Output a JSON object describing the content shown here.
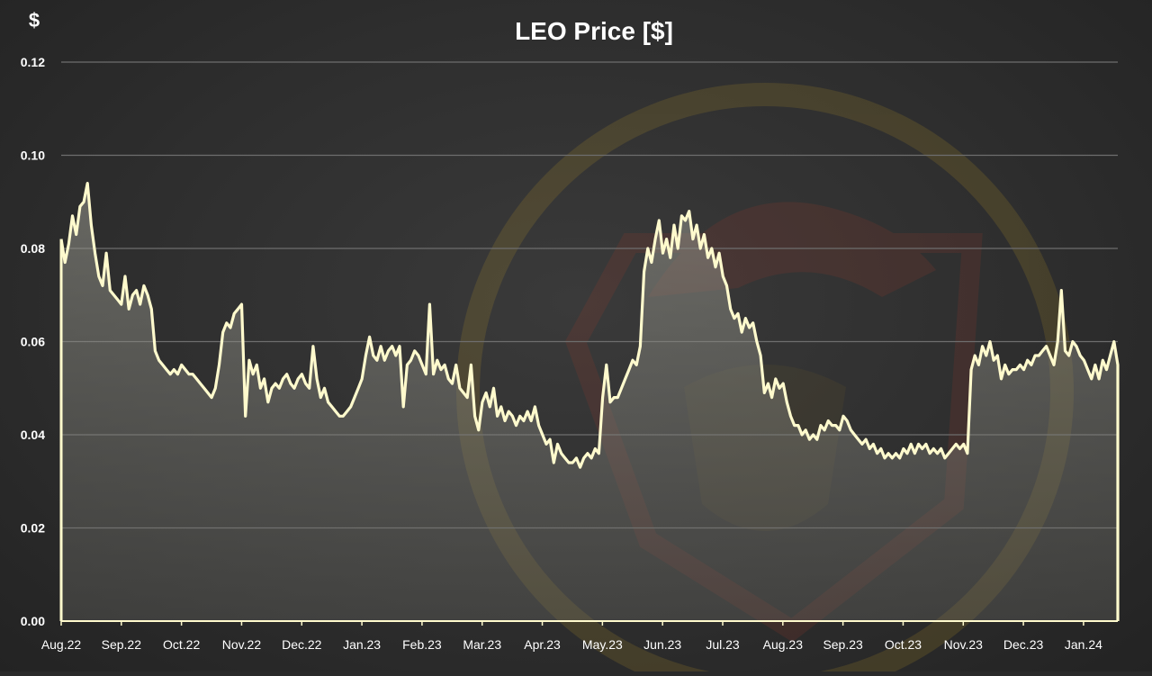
{
  "chart_data": {
    "type": "area",
    "title": "LEO Price [$]",
    "ylabel": "$",
    "xlabel": "",
    "ylim": [
      0,
      0.12
    ],
    "yticks": [
      "0.00",
      "0.02",
      "0.04",
      "0.06",
      "0.08",
      "0.10",
      "0.12"
    ],
    "categories": [
      "Aug.22",
      "Sep.22",
      "Oct.22",
      "Nov.22",
      "Dec.22",
      "Jan.23",
      "Feb.23",
      "Mar.23",
      "Apr.23",
      "May.23",
      "Jun.23",
      "Jul.23",
      "Aug.23",
      "Sep.23",
      "Oct.23",
      "Nov.23",
      "Dec.23",
      "Jan.24"
    ],
    "grid": true,
    "legend": "none",
    "colors": {
      "line": "#fffacd",
      "fill": "#8a8a80",
      "grid": "#6e6e6e",
      "axis": "#fffacd",
      "text": "#ffffff",
      "watermark": "#c9a227"
    },
    "series": [
      {
        "values": [
          [
            0.0,
            0.082
          ],
          [
            0.1,
            0.077
          ],
          [
            0.2,
            0.081
          ],
          [
            0.3,
            0.087
          ],
          [
            0.4,
            0.083
          ],
          [
            0.5,
            0.089
          ],
          [
            0.6,
            0.09
          ],
          [
            0.7,
            0.094
          ],
          [
            0.8,
            0.085
          ],
          [
            0.9,
            0.079
          ],
          [
            1.0,
            0.074
          ],
          [
            1.1,
            0.072
          ],
          [
            1.2,
            0.079
          ],
          [
            1.3,
            0.071
          ],
          [
            1.4,
            0.07
          ],
          [
            1.5,
            0.069
          ],
          [
            1.6,
            0.068
          ],
          [
            1.7,
            0.074
          ],
          [
            1.8,
            0.067
          ],
          [
            1.9,
            0.07
          ],
          [
            2.0,
            0.071
          ],
          [
            2.1,
            0.068
          ],
          [
            2.2,
            0.072
          ],
          [
            2.3,
            0.07
          ],
          [
            2.4,
            0.067
          ],
          [
            2.5,
            0.058
          ],
          [
            2.6,
            0.056
          ],
          [
            2.7,
            0.055
          ],
          [
            2.8,
            0.054
          ],
          [
            2.9,
            0.053
          ],
          [
            3.0,
            0.054
          ],
          [
            3.1,
            0.053
          ],
          [
            3.2,
            0.055
          ],
          [
            3.3,
            0.054
          ],
          [
            3.4,
            0.053
          ],
          [
            3.5,
            0.053
          ],
          [
            3.6,
            0.052
          ],
          [
            3.7,
            0.051
          ],
          [
            3.8,
            0.05
          ],
          [
            3.9,
            0.049
          ],
          [
            4.0,
            0.048
          ],
          [
            4.1,
            0.05
          ],
          [
            4.2,
            0.055
          ],
          [
            4.3,
            0.062
          ],
          [
            4.4,
            0.064
          ],
          [
            4.5,
            0.063
          ],
          [
            4.6,
            0.066
          ],
          [
            4.7,
            0.067
          ],
          [
            4.8,
            0.068
          ],
          [
            4.9,
            0.044
          ],
          [
            5.0,
            0.056
          ],
          [
            5.1,
            0.053
          ],
          [
            5.2,
            0.055
          ],
          [
            5.3,
            0.05
          ],
          [
            5.4,
            0.052
          ],
          [
            5.5,
            0.047
          ],
          [
            5.6,
            0.05
          ],
          [
            5.7,
            0.051
          ],
          [
            5.8,
            0.05
          ],
          [
            5.9,
            0.052
          ],
          [
            6.0,
            0.053
          ],
          [
            6.1,
            0.051
          ],
          [
            6.2,
            0.05
          ],
          [
            6.3,
            0.052
          ],
          [
            6.4,
            0.053
          ],
          [
            6.5,
            0.051
          ],
          [
            6.6,
            0.05
          ],
          [
            6.7,
            0.059
          ],
          [
            6.8,
            0.052
          ],
          [
            6.9,
            0.048
          ],
          [
            7.0,
            0.05
          ],
          [
            7.1,
            0.047
          ],
          [
            7.2,
            0.046
          ],
          [
            7.3,
            0.045
          ],
          [
            7.4,
            0.044
          ],
          [
            7.5,
            0.044
          ],
          [
            7.6,
            0.045
          ],
          [
            7.7,
            0.046
          ],
          [
            7.8,
            0.048
          ],
          [
            7.9,
            0.05
          ],
          [
            8.0,
            0.052
          ],
          [
            8.1,
            0.057
          ],
          [
            8.2,
            0.061
          ],
          [
            8.3,
            0.057
          ],
          [
            8.4,
            0.056
          ],
          [
            8.5,
            0.059
          ],
          [
            8.6,
            0.056
          ],
          [
            8.7,
            0.058
          ],
          [
            8.8,
            0.059
          ],
          [
            8.9,
            0.057
          ],
          [
            9.0,
            0.059
          ],
          [
            9.1,
            0.046
          ],
          [
            9.2,
            0.055
          ],
          [
            9.3,
            0.056
          ],
          [
            9.4,
            0.058
          ],
          [
            9.5,
            0.057
          ],
          [
            9.6,
            0.055
          ],
          [
            9.7,
            0.053
          ],
          [
            9.8,
            0.068
          ],
          [
            9.9,
            0.053
          ],
          [
            10.0,
            0.056
          ],
          [
            10.1,
            0.054
          ],
          [
            10.2,
            0.055
          ],
          [
            10.3,
            0.052
          ],
          [
            10.4,
            0.051
          ],
          [
            10.5,
            0.055
          ],
          [
            10.6,
            0.05
          ],
          [
            10.7,
            0.049
          ],
          [
            10.8,
            0.048
          ],
          [
            10.9,
            0.055
          ],
          [
            11.0,
            0.044
          ],
          [
            11.1,
            0.041
          ],
          [
            11.2,
            0.047
          ],
          [
            11.3,
            0.049
          ],
          [
            11.4,
            0.046
          ],
          [
            11.5,
            0.05
          ],
          [
            11.6,
            0.044
          ],
          [
            11.7,
            0.046
          ],
          [
            11.8,
            0.043
          ],
          [
            11.9,
            0.045
          ],
          [
            12.0,
            0.044
          ],
          [
            12.1,
            0.042
          ],
          [
            12.2,
            0.044
          ],
          [
            12.3,
            0.043
          ],
          [
            12.4,
            0.045
          ],
          [
            12.5,
            0.043
          ],
          [
            12.6,
            0.046
          ],
          [
            12.7,
            0.042
          ],
          [
            12.8,
            0.04
          ],
          [
            12.9,
            0.038
          ],
          [
            13.0,
            0.039
          ],
          [
            13.1,
            0.034
          ],
          [
            13.2,
            0.038
          ],
          [
            13.3,
            0.036
          ],
          [
            13.4,
            0.035
          ],
          [
            13.5,
            0.034
          ],
          [
            13.6,
            0.034
          ],
          [
            13.7,
            0.035
          ],
          [
            13.8,
            0.033
          ],
          [
            13.9,
            0.035
          ],
          [
            14.0,
            0.036
          ],
          [
            14.1,
            0.035
          ],
          [
            14.2,
            0.037
          ],
          [
            14.3,
            0.036
          ],
          [
            14.4,
            0.048
          ],
          [
            14.5,
            0.055
          ],
          [
            14.6,
            0.047
          ],
          [
            14.7,
            0.048
          ],
          [
            14.8,
            0.048
          ],
          [
            14.9,
            0.05
          ],
          [
            15.0,
            0.052
          ],
          [
            15.1,
            0.054
          ],
          [
            15.2,
            0.056
          ],
          [
            15.3,
            0.055
          ],
          [
            15.4,
            0.059
          ],
          [
            15.5,
            0.075
          ],
          [
            15.6,
            0.08
          ],
          [
            15.7,
            0.077
          ],
          [
            15.8,
            0.082
          ],
          [
            15.9,
            0.086
          ],
          [
            16.0,
            0.079
          ],
          [
            16.1,
            0.082
          ],
          [
            16.2,
            0.078
          ],
          [
            16.3,
            0.085
          ],
          [
            16.4,
            0.08
          ],
          [
            16.5,
            0.087
          ],
          [
            16.6,
            0.086
          ],
          [
            16.7,
            0.088
          ],
          [
            16.8,
            0.082
          ],
          [
            16.9,
            0.085
          ],
          [
            17.0,
            0.08
          ],
          [
            17.1,
            0.083
          ],
          [
            17.2,
            0.078
          ],
          [
            17.3,
            0.08
          ],
          [
            17.4,
            0.076
          ],
          [
            17.5,
            0.079
          ],
          [
            17.6,
            0.074
          ],
          [
            17.7,
            0.072
          ],
          [
            17.8,
            0.067
          ],
          [
            17.9,
            0.065
          ],
          [
            18.0,
            0.066
          ],
          [
            18.1,
            0.062
          ],
          [
            18.2,
            0.065
          ],
          [
            18.3,
            0.063
          ],
          [
            18.4,
            0.064
          ],
          [
            18.5,
            0.06
          ],
          [
            18.6,
            0.057
          ],
          [
            18.7,
            0.049
          ],
          [
            18.8,
            0.051
          ],
          [
            18.9,
            0.048
          ],
          [
            19.0,
            0.052
          ],
          [
            19.1,
            0.05
          ],
          [
            19.2,
            0.051
          ],
          [
            19.3,
            0.047
          ],
          [
            19.4,
            0.044
          ],
          [
            19.5,
            0.042
          ],
          [
            19.6,
            0.042
          ],
          [
            19.7,
            0.04
          ],
          [
            19.8,
            0.041
          ],
          [
            19.9,
            0.039
          ],
          [
            20.0,
            0.04
          ],
          [
            20.1,
            0.039
          ],
          [
            20.2,
            0.042
          ],
          [
            20.3,
            0.041
          ],
          [
            20.4,
            0.043
          ],
          [
            20.5,
            0.042
          ],
          [
            20.6,
            0.042
          ],
          [
            20.7,
            0.041
          ],
          [
            20.8,
            0.044
          ],
          [
            20.9,
            0.043
          ],
          [
            21.0,
            0.041
          ],
          [
            21.1,
            0.04
          ],
          [
            21.2,
            0.039
          ],
          [
            21.3,
            0.038
          ],
          [
            21.4,
            0.039
          ],
          [
            21.5,
            0.037
          ],
          [
            21.6,
            0.038
          ],
          [
            21.7,
            0.036
          ],
          [
            21.8,
            0.037
          ],
          [
            21.9,
            0.035
          ],
          [
            22.0,
            0.036
          ],
          [
            22.1,
            0.035
          ],
          [
            22.2,
            0.036
          ],
          [
            22.3,
            0.035
          ],
          [
            22.4,
            0.037
          ],
          [
            22.5,
            0.036
          ],
          [
            22.6,
            0.038
          ],
          [
            22.7,
            0.036
          ],
          [
            22.8,
            0.038
          ],
          [
            22.9,
            0.037
          ],
          [
            23.0,
            0.038
          ],
          [
            23.1,
            0.036
          ],
          [
            23.2,
            0.037
          ],
          [
            23.3,
            0.036
          ],
          [
            23.4,
            0.037
          ],
          [
            23.5,
            0.035
          ],
          [
            23.6,
            0.036
          ],
          [
            23.7,
            0.037
          ],
          [
            23.8,
            0.038
          ],
          [
            23.9,
            0.037
          ],
          [
            24.0,
            0.038
          ],
          [
            24.1,
            0.036
          ],
          [
            24.2,
            0.054
          ],
          [
            24.3,
            0.057
          ],
          [
            24.4,
            0.055
          ],
          [
            24.5,
            0.059
          ],
          [
            24.6,
            0.057
          ],
          [
            24.7,
            0.06
          ],
          [
            24.8,
            0.056
          ],
          [
            24.9,
            0.057
          ],
          [
            25.0,
            0.052
          ],
          [
            25.1,
            0.055
          ],
          [
            25.2,
            0.053
          ],
          [
            25.3,
            0.054
          ],
          [
            25.4,
            0.054
          ],
          [
            25.5,
            0.055
          ],
          [
            25.6,
            0.054
          ],
          [
            25.7,
            0.056
          ],
          [
            25.8,
            0.055
          ],
          [
            25.9,
            0.057
          ],
          [
            26.0,
            0.057
          ],
          [
            26.1,
            0.058
          ],
          [
            26.2,
            0.059
          ],
          [
            26.3,
            0.057
          ],
          [
            26.4,
            0.055
          ],
          [
            26.5,
            0.06
          ],
          [
            26.6,
            0.071
          ],
          [
            26.7,
            0.058
          ],
          [
            26.8,
            0.057
          ],
          [
            26.9,
            0.06
          ],
          [
            27.0,
            0.059
          ],
          [
            27.1,
            0.057
          ],
          [
            27.2,
            0.056
          ],
          [
            27.3,
            0.054
          ],
          [
            27.4,
            0.052
          ],
          [
            27.5,
            0.055
          ],
          [
            27.6,
            0.052
          ],
          [
            27.7,
            0.056
          ],
          [
            27.8,
            0.054
          ],
          [
            27.9,
            0.057
          ],
          [
            28.0,
            0.06
          ],
          [
            28.1,
            0.055
          ]
        ]
      }
    ]
  }
}
